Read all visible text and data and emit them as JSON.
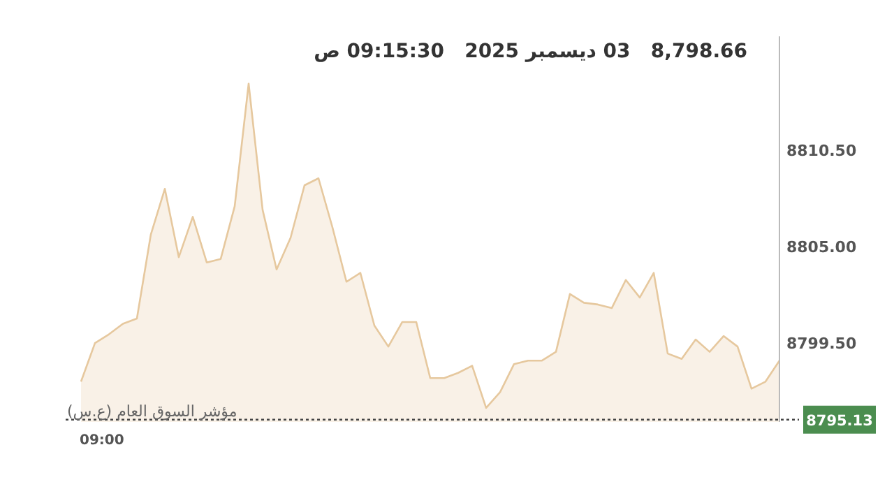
{
  "chart_data": {
    "type": "area",
    "title": "8,798.66   03 ديسمبر 2025   09:15:30 ص",
    "annotations": [
      "مؤشر السوق العام (ع.س)",
      "09:00"
    ],
    "categories": [
      null,
      null,
      null,
      null,
      null,
      null,
      null,
      null,
      null,
      null,
      null,
      null,
      null,
      null,
      null,
      null,
      null,
      null,
      null,
      null,
      null,
      null,
      null,
      null,
      null,
      null,
      null,
      null,
      null,
      null,
      null,
      null,
      null,
      null,
      null,
      null,
      null,
      null,
      null,
      null,
      null,
      null,
      null,
      null,
      null,
      null,
      null,
      null,
      null,
      null,
      null
    ],
    "series": [
      {
        "color": "#e6c89e",
        "values": [
          8797.3,
          8799.5,
          8800.0,
          8800.6,
          8800.9,
          8805.7,
          8808.3,
          8804.4,
          8806.7,
          8804.1,
          8804.3,
          8807.3,
          8814.3,
          8807.1,
          8803.7,
          8805.5,
          8808.5,
          8808.9,
          8806.1,
          8803.0,
          8803.5,
          8800.5,
          8799.3,
          8800.7,
          8800.7,
          8797.5,
          8797.5,
          8797.8,
          8798.2,
          8795.8,
          8796.7,
          8798.3,
          8798.5,
          8798.5,
          8799.0,
          8802.3,
          8801.8,
          8801.7,
          8801.5,
          8803.1,
          8802.1,
          8803.5,
          8798.9,
          8798.6,
          8799.7,
          8799.0,
          8799.9,
          8799.3,
          8796.9,
          8797.3,
          8798.5
        ]
      }
    ],
    "ylim": [
      8795.0,
      8817.0
    ],
    "yticks": [
      {
        "value": 8799.5,
        "label": "8799.50"
      },
      {
        "value": 8805,
        "label": "8805.00"
      },
      {
        "value": 8810.5,
        "label": "8810.50"
      }
    ],
    "ref_lines": [
      {
        "axis": "y",
        "value": 8795.13,
        "label": "8795.13",
        "color": "#444444",
        "line_style": "dotted"
      }
    ],
    "grid": false
  }
}
